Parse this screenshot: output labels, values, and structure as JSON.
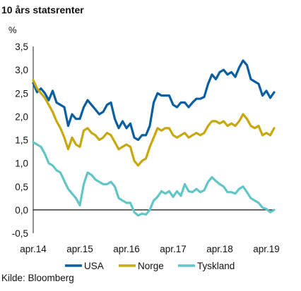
{
  "chart_data": {
    "type": "line",
    "title": "10 års statsrenter",
    "unit_label": "%",
    "source": "Kilde: Bloomberg",
    "ylim": [
      -0.5,
      3.5
    ],
    "yticks": [
      "3,5",
      "3,0",
      "2,5",
      "2,0",
      "1,5",
      "1,0",
      "0,5",
      "0,0",
      "-0,5"
    ],
    "ytick_values": [
      3.5,
      3.0,
      2.5,
      2.0,
      1.5,
      1.0,
      0.5,
      0.0,
      -0.5
    ],
    "xlim": [
      "2014-04",
      "2019-06"
    ],
    "xticks": [
      "apr.14",
      "apr.15",
      "apr.16",
      "apr.17",
      "apr.18",
      "apr.19"
    ],
    "xtick_dates": [
      "2014-04",
      "2015-04",
      "2016-04",
      "2017-04",
      "2018-04",
      "2019-04"
    ],
    "grid": false,
    "legend_position": "bottom",
    "x": [
      "2014-04",
      "2014-05",
      "2014-06",
      "2014-07",
      "2014-08",
      "2014-09",
      "2014-10",
      "2014-11",
      "2014-12",
      "2015-01",
      "2015-02",
      "2015-03",
      "2015-04",
      "2015-05",
      "2015-06",
      "2015-07",
      "2015-08",
      "2015-09",
      "2015-10",
      "2015-11",
      "2015-12",
      "2016-01",
      "2016-02",
      "2016-03",
      "2016-04",
      "2016-05",
      "2016-06",
      "2016-07",
      "2016-08",
      "2016-09",
      "2016-10",
      "2016-11",
      "2016-12",
      "2017-01",
      "2017-02",
      "2017-03",
      "2017-04",
      "2017-05",
      "2017-06",
      "2017-07",
      "2017-08",
      "2017-09",
      "2017-10",
      "2017-11",
      "2017-12",
      "2018-01",
      "2018-02",
      "2018-03",
      "2018-04",
      "2018-05",
      "2018-06",
      "2018-07",
      "2018-08",
      "2018-09",
      "2018-10",
      "2018-11",
      "2018-12",
      "2019-01",
      "2019-02",
      "2019-03",
      "2019-04",
      "2019-05",
      "2019-06"
    ],
    "series": [
      {
        "name": "USA",
        "color": "#0a5fa0",
        "values": [
          2.72,
          2.52,
          2.6,
          2.5,
          2.35,
          2.55,
          2.3,
          2.25,
          2.2,
          1.8,
          2.05,
          1.95,
          1.95,
          2.2,
          2.35,
          2.25,
          2.15,
          2.05,
          2.1,
          2.25,
          2.3,
          1.95,
          1.75,
          1.9,
          1.75,
          1.85,
          1.55,
          1.5,
          1.6,
          1.6,
          1.8,
          2.3,
          2.5,
          2.45,
          2.45,
          2.45,
          2.25,
          2.2,
          2.3,
          2.3,
          2.2,
          2.3,
          2.38,
          2.38,
          2.42,
          2.7,
          2.9,
          2.8,
          2.95,
          3.0,
          2.9,
          2.95,
          2.85,
          3.05,
          3.2,
          3.1,
          2.8,
          2.75,
          2.7,
          2.45,
          2.55,
          2.4,
          2.52
        ]
      },
      {
        "name": "Norge",
        "color": "#c7a80f",
        "values": [
          2.78,
          2.6,
          2.5,
          2.4,
          2.25,
          2.1,
          1.9,
          1.75,
          1.55,
          1.3,
          1.55,
          1.4,
          1.35,
          1.7,
          1.75,
          1.65,
          1.6,
          1.5,
          1.55,
          1.65,
          1.6,
          1.45,
          1.3,
          1.35,
          1.4,
          1.35,
          1.05,
          0.95,
          1.05,
          1.1,
          1.35,
          1.55,
          1.75,
          1.7,
          1.75,
          1.75,
          1.6,
          1.55,
          1.6,
          1.65,
          1.55,
          1.6,
          1.65,
          1.6,
          1.65,
          1.8,
          1.9,
          1.9,
          1.85,
          1.9,
          1.8,
          1.85,
          1.8,
          1.9,
          2.05,
          1.95,
          1.8,
          1.75,
          1.8,
          1.6,
          1.65,
          1.6,
          1.75
        ]
      },
      {
        "name": "Tyskland",
        "color": "#62c6c6",
        "values": [
          1.45,
          1.4,
          1.35,
          1.2,
          1.0,
          0.95,
          0.85,
          0.8,
          0.62,
          0.45,
          0.35,
          0.25,
          0.1,
          0.55,
          0.8,
          0.75,
          0.65,
          0.6,
          0.55,
          0.55,
          0.6,
          0.5,
          0.25,
          0.2,
          0.15,
          0.15,
          -0.05,
          -0.12,
          -0.08,
          -0.1,
          0.0,
          0.2,
          0.28,
          0.4,
          0.35,
          0.4,
          0.28,
          0.4,
          0.3,
          0.55,
          0.4,
          0.38,
          0.45,
          0.38,
          0.42,
          0.6,
          0.7,
          0.62,
          0.55,
          0.5,
          0.38,
          0.38,
          0.35,
          0.45,
          0.5,
          0.38,
          0.25,
          0.2,
          0.15,
          0.05,
          0.02,
          -0.05,
          0.0
        ]
      }
    ]
  }
}
